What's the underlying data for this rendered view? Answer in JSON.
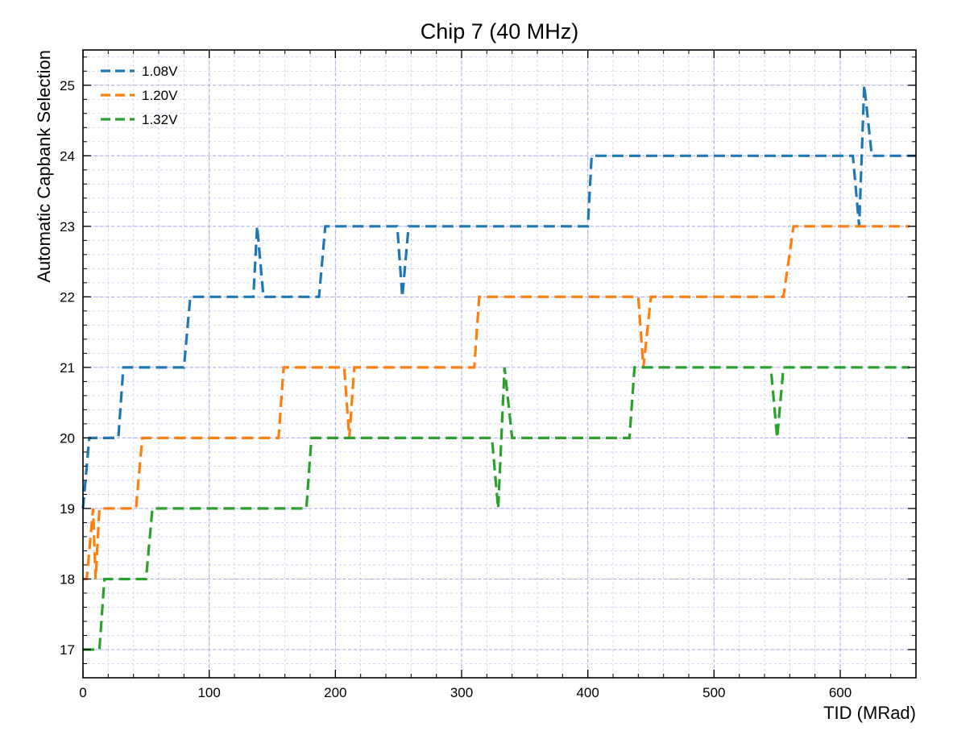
{
  "chart_data": {
    "type": "line",
    "title": "Chip 7 (40 MHz)",
    "xlabel": "TID (MRad)",
    "ylabel": "Automatic Capbank Selection",
    "xlim": [
      0,
      660
    ],
    "ylim": [
      16.6,
      25.5
    ],
    "x_ticks": [
      0,
      100,
      200,
      300,
      400,
      500,
      600
    ],
    "y_ticks": [
      17,
      18,
      19,
      20,
      21,
      22,
      23,
      24,
      25
    ],
    "grid": true,
    "grid_minor": true,
    "line_style": "dashed",
    "legend_position": "top-left",
    "series": [
      {
        "name": "1.08V",
        "color": "#1f77b4",
        "points": [
          [
            0,
            19
          ],
          [
            5,
            20
          ],
          [
            28,
            20
          ],
          [
            32,
            21
          ],
          [
            80,
            21
          ],
          [
            85,
            22
          ],
          [
            135,
            22
          ],
          [
            138,
            23
          ],
          [
            143,
            22
          ],
          [
            187,
            22
          ],
          [
            192,
            23
          ],
          [
            249,
            23
          ],
          [
            253,
            22
          ],
          [
            258,
            23
          ],
          [
            400,
            23
          ],
          [
            403,
            24
          ],
          [
            610,
            24
          ],
          [
            615,
            23
          ],
          [
            619,
            25
          ],
          [
            625,
            24
          ],
          [
            660,
            24
          ]
        ]
      },
      {
        "name": "1.20V",
        "color": "#ff7f0e",
        "points": [
          [
            0,
            18
          ],
          [
            3,
            18
          ],
          [
            8,
            19
          ],
          [
            10,
            18
          ],
          [
            13,
            19
          ],
          [
            42,
            19
          ],
          [
            47,
            20
          ],
          [
            155,
            20
          ],
          [
            159,
            21
          ],
          [
            207,
            21
          ],
          [
            211,
            20
          ],
          [
            215,
            21
          ],
          [
            310,
            21
          ],
          [
            314,
            22
          ],
          [
            440,
            22
          ],
          [
            444,
            21
          ],
          [
            450,
            22
          ],
          [
            555,
            22
          ],
          [
            563,
            23
          ],
          [
            655,
            23
          ]
        ]
      },
      {
        "name": "1.32V",
        "color": "#2ca02c",
        "points": [
          [
            0,
            17
          ],
          [
            13,
            17
          ],
          [
            17,
            18
          ],
          [
            50,
            18
          ],
          [
            55,
            19
          ],
          [
            177,
            19
          ],
          [
            181,
            20
          ],
          [
            324,
            20
          ],
          [
            329,
            19
          ],
          [
            334,
            21
          ],
          [
            340,
            20
          ],
          [
            433,
            20
          ],
          [
            437,
            21
          ],
          [
            545,
            21
          ],
          [
            550,
            20
          ],
          [
            555,
            21
          ],
          [
            655,
            21
          ]
        ]
      }
    ]
  }
}
